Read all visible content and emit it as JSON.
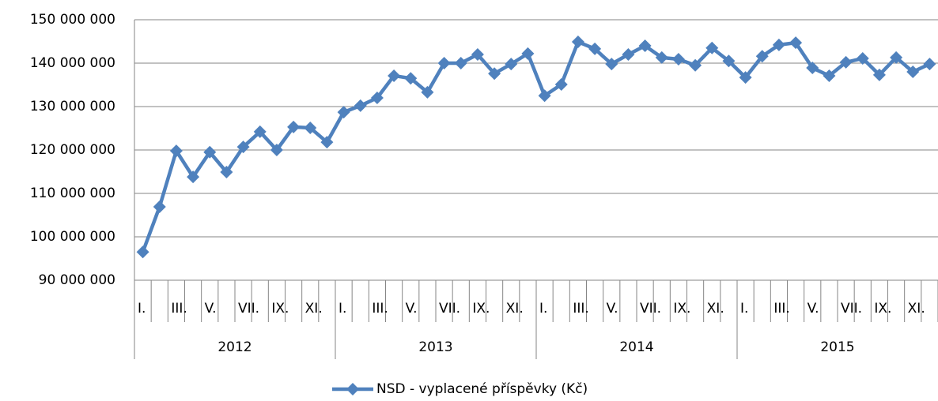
{
  "chart_data": {
    "type": "line",
    "categories": [
      "I.",
      null,
      "III.",
      null,
      "V.",
      null,
      "VII.",
      null,
      "IX.",
      null,
      "XI.",
      null,
      "I.",
      null,
      "III.",
      null,
      "V.",
      null,
      "VII.",
      null,
      "IX.",
      null,
      "XI.",
      null,
      "I.",
      null,
      "III.",
      null,
      "V.",
      null,
      "VII.",
      null,
      "IX.",
      null,
      "XI.",
      null,
      "I.",
      null,
      "III.",
      null,
      "V.",
      null,
      "VII.",
      null,
      "IX.",
      null,
      "XI.",
      null
    ],
    "groups": [
      "2012",
      "2013",
      "2014",
      "2015"
    ],
    "series": [
      {
        "name": "NSD - vyplacené příspěvky (Kč)",
        "color": "#4f81bd",
        "values": [
          96500000,
          106900000,
          119800000,
          113800000,
          119500000,
          114900000,
          120700000,
          124200000,
          120000000,
          125300000,
          125100000,
          121800000,
          128700000,
          130200000,
          132000000,
          137100000,
          136500000,
          133300000,
          140000000,
          140000000,
          142000000,
          137600000,
          139800000,
          142200000,
          132500000,
          135100000,
          144900000,
          143300000,
          139800000,
          142000000,
          144000000,
          141300000,
          140900000,
          139500000,
          143500000,
          140500000,
          136700000,
          141600000,
          144200000,
          144700000,
          138900000,
          137100000,
          140200000,
          141100000,
          137300000,
          141300000,
          138000000,
          139800000
        ]
      }
    ],
    "ylim": [
      90000000,
      150000000
    ],
    "yticks": [
      {
        "value": 90000000,
        "label": "90 000 000"
      },
      {
        "value": 100000000,
        "label": "100 000 000"
      },
      {
        "value": 110000000,
        "label": "110 000 000"
      },
      {
        "value": 120000000,
        "label": "120 000 000"
      },
      {
        "value": 130000000,
        "label": "130 000 000"
      },
      {
        "value": 140000000,
        "label": "140 000 000"
      },
      {
        "value": 150000000,
        "label": "150 000 000"
      }
    ],
    "grid": true,
    "legend": "bottom"
  }
}
